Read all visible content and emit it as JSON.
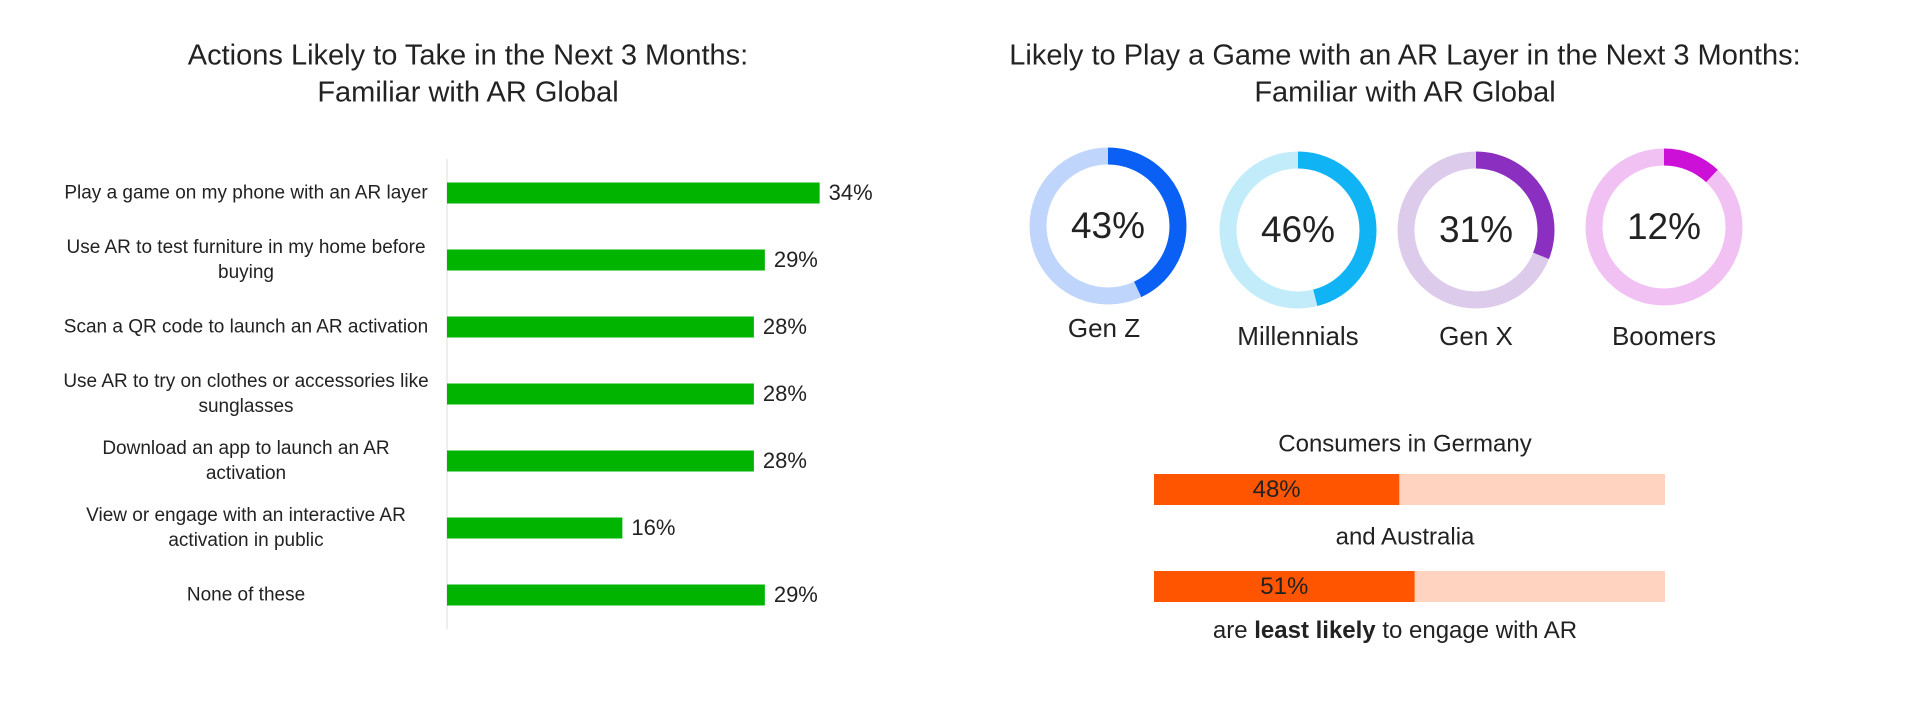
{
  "chart_data": [
    {
      "type": "hbar",
      "title": [
        "Actions Likely to Take in the Next 3 Months:",
        "Familiar with AR Global"
      ],
      "categories": [
        "Play a game on my phone with an AR layer",
        "Use AR to test furniture in my home before buying",
        "Scan a QR code to launch an AR activation",
        "Use AR to try on clothes or accessories like sunglasses",
        "Download an app to launch an AR activation",
        "View or engage with an interactive AR activation in public",
        "None of these"
      ],
      "values": [
        34,
        29,
        28,
        28,
        28,
        16,
        29
      ],
      "value_labels": [
        "34%",
        "29%",
        "28%",
        "28%",
        "28%",
        "16%",
        "29%"
      ],
      "color": "#00b400"
    },
    {
      "type": "donut",
      "title": [
        "Likely to Play a Game with an AR Layer in the Next 3 Months:",
        "Familiar with AR Global"
      ],
      "categories": [
        "Gen Z",
        "Millennials",
        "Gen X",
        "Boomers"
      ],
      "values": [
        43,
        46,
        31,
        12
      ],
      "value_labels": [
        "43%",
        "46%",
        "31%",
        "12%"
      ],
      "colors": [
        "#0a5ff5",
        "#10b4f5",
        "#8a2fbf",
        "#cc10d8"
      ],
      "track_colors": [
        "#c0d5fb",
        "#c3ecfb",
        "#dccbeb",
        "#f2c1f3"
      ]
    },
    {
      "type": "progress",
      "labels": [
        "Consumers in Germany",
        "and Australia"
      ],
      "values": [
        48,
        51
      ],
      "value_labels": [
        "48%",
        "51%"
      ],
      "color": "#ff5500",
      "track_color": "#ffd3c0",
      "footer": [
        "are ",
        "least likely",
        " to engage with AR"
      ]
    }
  ]
}
